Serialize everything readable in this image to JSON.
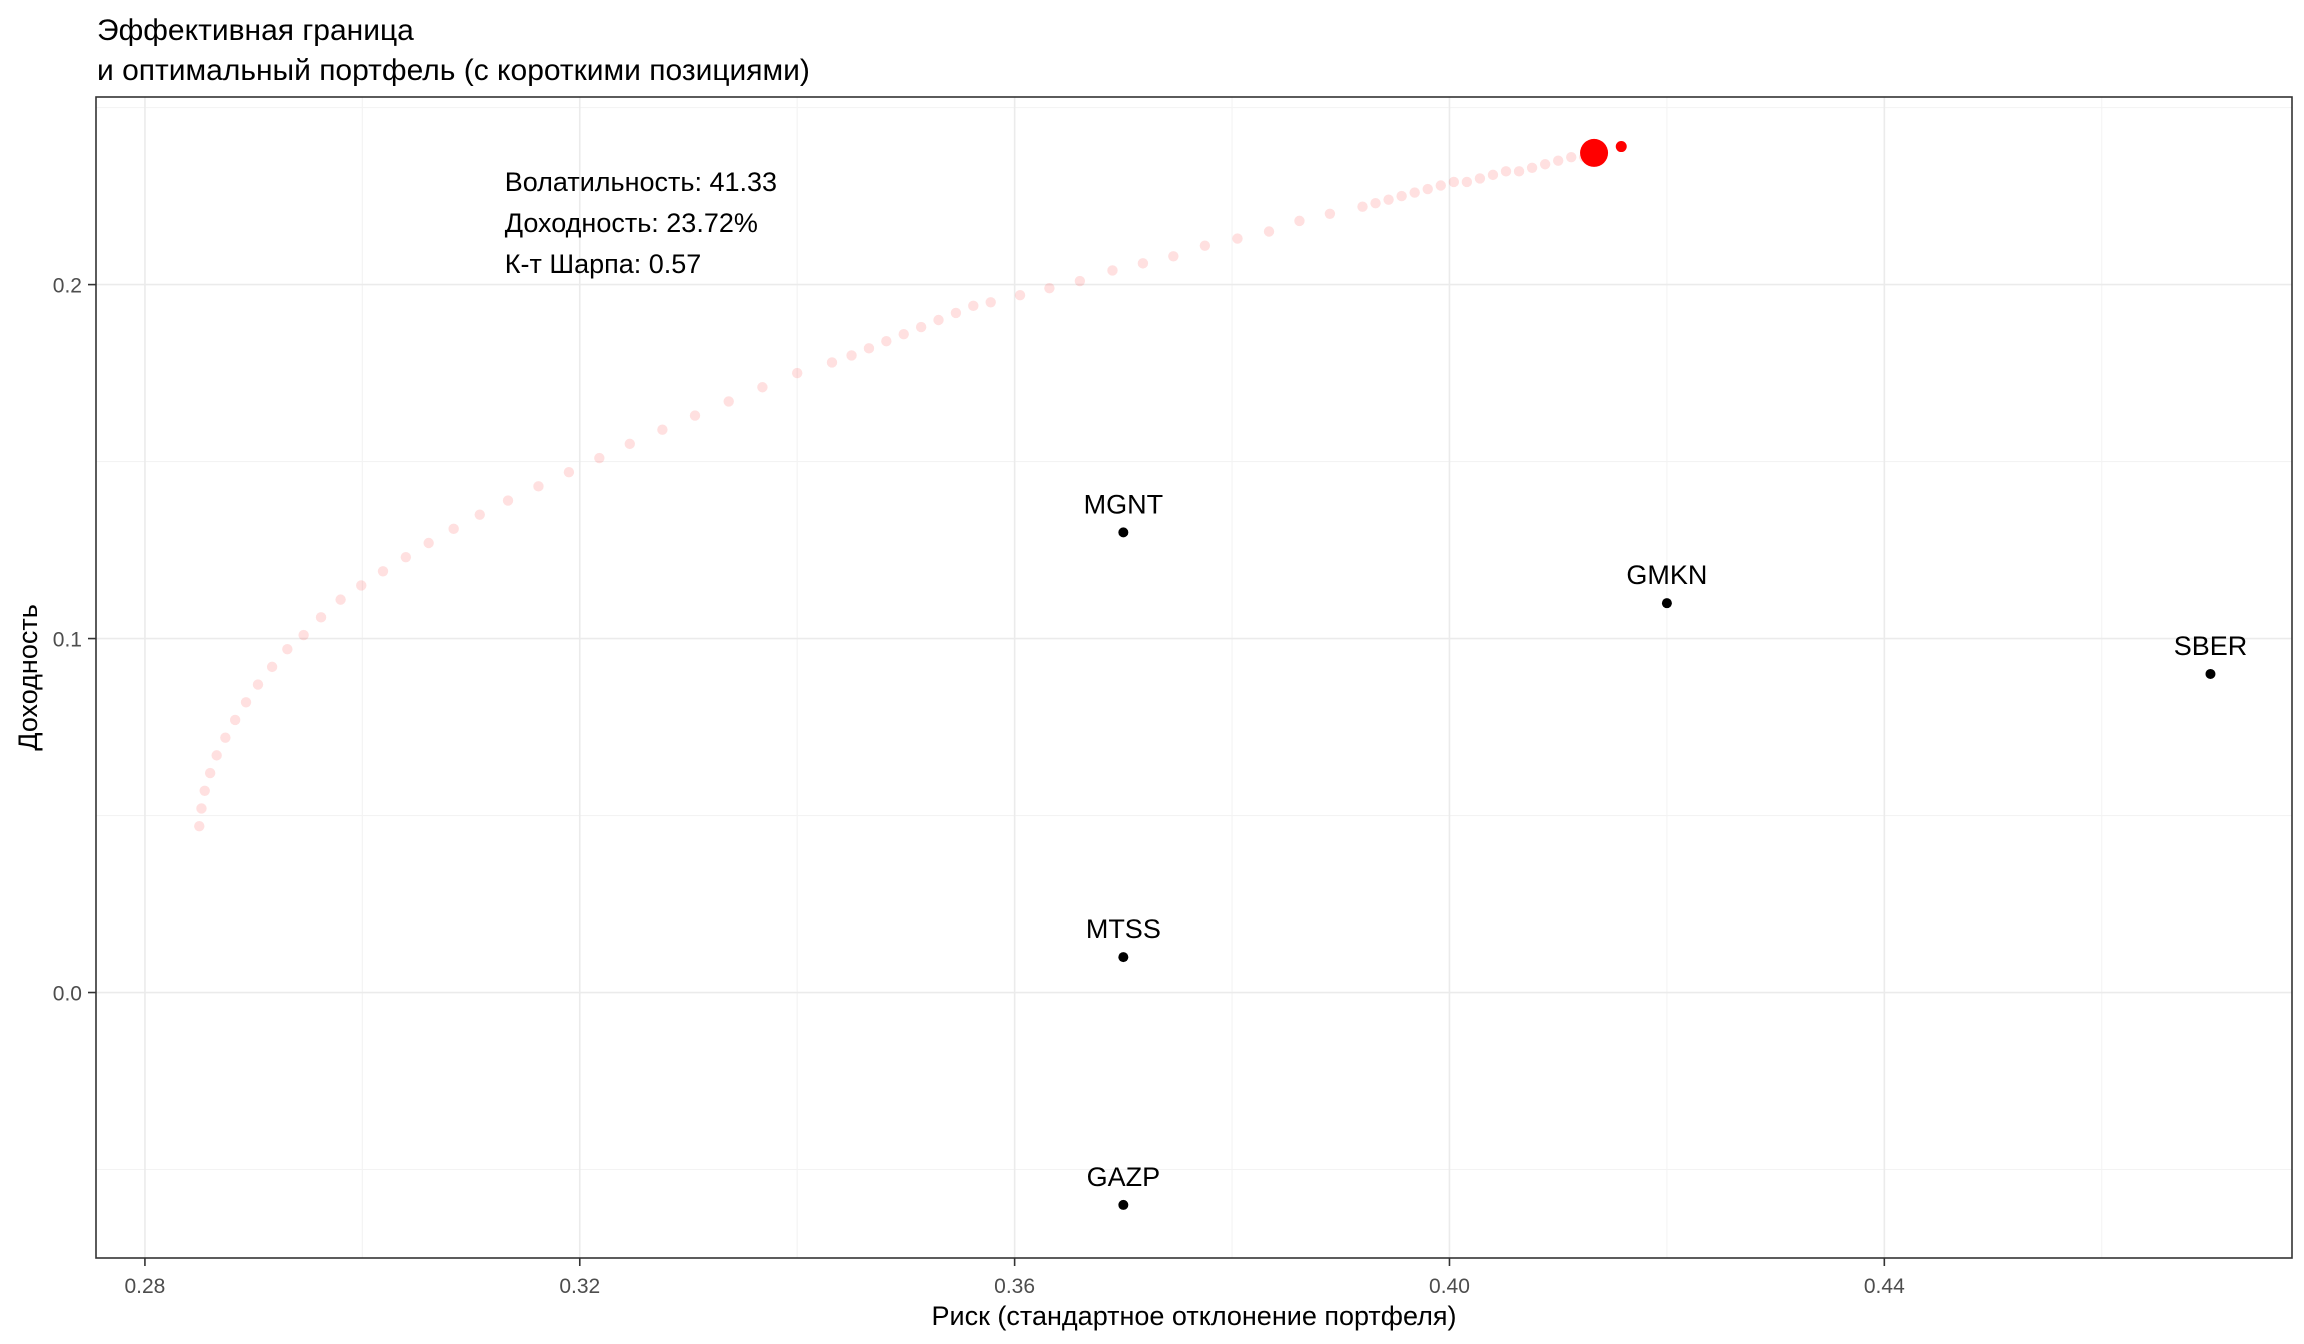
{
  "chart_data": {
    "type": "scatter",
    "title": "Эффективная граница",
    "subtitle": "и оптимальный портфель (с короткими позициями)",
    "xlabel": "Риск (стандартное отклонение портфеля)",
    "ylabel": "Доходность",
    "xlim": [
      0.2755,
      0.4775
    ],
    "ylim": [
      -0.075,
      0.253
    ],
    "x_ticks": [
      0.28,
      0.32,
      0.36,
      0.4,
      0.44
    ],
    "x_tick_labels": [
      "0.28",
      "0.32",
      "0.36",
      "0.40",
      "0.44"
    ],
    "y_ticks": [
      0.0,
      0.1,
      0.2
    ],
    "y_tick_labels": [
      "0.0",
      "0.1",
      "0.2"
    ],
    "grid": true,
    "legend": "none",
    "assets": [
      {
        "name": "MGNT",
        "x": 0.37,
        "y": 0.13
      },
      {
        "name": "GMKN",
        "x": 0.42,
        "y": 0.11
      },
      {
        "name": "SBER",
        "x": 0.47,
        "y": 0.09
      },
      {
        "name": "MTSS",
        "x": 0.37,
        "y": 0.01
      },
      {
        "name": "GAZP",
        "x": 0.37,
        "y": -0.06
      }
    ],
    "frontier": {
      "color": "#ff0000",
      "opacity": 0.12,
      "points": [
        [
          0.285,
          0.047
        ],
        [
          0.2852,
          0.052
        ],
        [
          0.2855,
          0.057
        ],
        [
          0.286,
          0.062
        ],
        [
          0.2866,
          0.067
        ],
        [
          0.2874,
          0.072
        ],
        [
          0.2883,
          0.077
        ],
        [
          0.2893,
          0.082
        ],
        [
          0.2904,
          0.087
        ],
        [
          0.2917,
          0.092
        ],
        [
          0.2931,
          0.097
        ],
        [
          0.2946,
          0.101
        ],
        [
          0.2962,
          0.106
        ],
        [
          0.298,
          0.111
        ],
        [
          0.2999,
          0.115
        ],
        [
          0.3019,
          0.119
        ],
        [
          0.304,
          0.123
        ],
        [
          0.3061,
          0.127
        ],
        [
          0.3084,
          0.131
        ],
        [
          0.3108,
          0.135
        ],
        [
          0.3134,
          0.139
        ],
        [
          0.3162,
          0.143
        ],
        [
          0.319,
          0.147
        ],
        [
          0.3218,
          0.151
        ],
        [
          0.3246,
          0.155
        ],
        [
          0.3276,
          0.159
        ],
        [
          0.3306,
          0.163
        ],
        [
          0.3337,
          0.167
        ],
        [
          0.3368,
          0.171
        ],
        [
          0.34,
          0.175
        ],
        [
          0.3432,
          0.178
        ],
        [
          0.345,
          0.18
        ],
        [
          0.3466,
          0.182
        ],
        [
          0.3482,
          0.184
        ],
        [
          0.3498,
          0.186
        ],
        [
          0.3514,
          0.188
        ],
        [
          0.353,
          0.19
        ],
        [
          0.3546,
          0.192
        ],
        [
          0.3562,
          0.194
        ],
        [
          0.3578,
          0.195
        ],
        [
          0.3605,
          0.197
        ],
        [
          0.3632,
          0.199
        ],
        [
          0.366,
          0.201
        ],
        [
          0.369,
          0.204
        ],
        [
          0.3718,
          0.206
        ],
        [
          0.3746,
          0.208
        ],
        [
          0.3775,
          0.211
        ],
        [
          0.3805,
          0.213
        ],
        [
          0.3834,
          0.215
        ],
        [
          0.3862,
          0.218
        ],
        [
          0.389,
          0.22
        ],
        [
          0.392,
          0.222
        ],
        [
          0.3932,
          0.223
        ],
        [
          0.3944,
          0.224
        ],
        [
          0.3956,
          0.225
        ],
        [
          0.3968,
          0.226
        ],
        [
          0.398,
          0.227
        ],
        [
          0.3992,
          0.228
        ],
        [
          0.4004,
          0.229
        ],
        [
          0.4016,
          0.229
        ],
        [
          0.4028,
          0.23
        ],
        [
          0.404,
          0.231
        ],
        [
          0.4052,
          0.232
        ],
        [
          0.4064,
          0.232
        ],
        [
          0.4076,
          0.233
        ],
        [
          0.4088,
          0.234
        ],
        [
          0.41,
          0.235
        ],
        [
          0.4112,
          0.236
        ],
        [
          0.4124,
          0.236
        ]
      ]
    },
    "optimal_portfolio": {
      "x": 0.4133,
      "y": 0.2372,
      "color": "#ff0000"
    },
    "extra_point": {
      "x": 0.4158,
      "y": 0.239,
      "color": "#ff0000"
    },
    "annotations": [
      "Волатильность: 41.33",
      "Доходность: 23.72%",
      "К-т Шарпа: 0.57"
    ],
    "annotation_anchor": {
      "x": 0.3131,
      "y": 0.2265
    }
  }
}
